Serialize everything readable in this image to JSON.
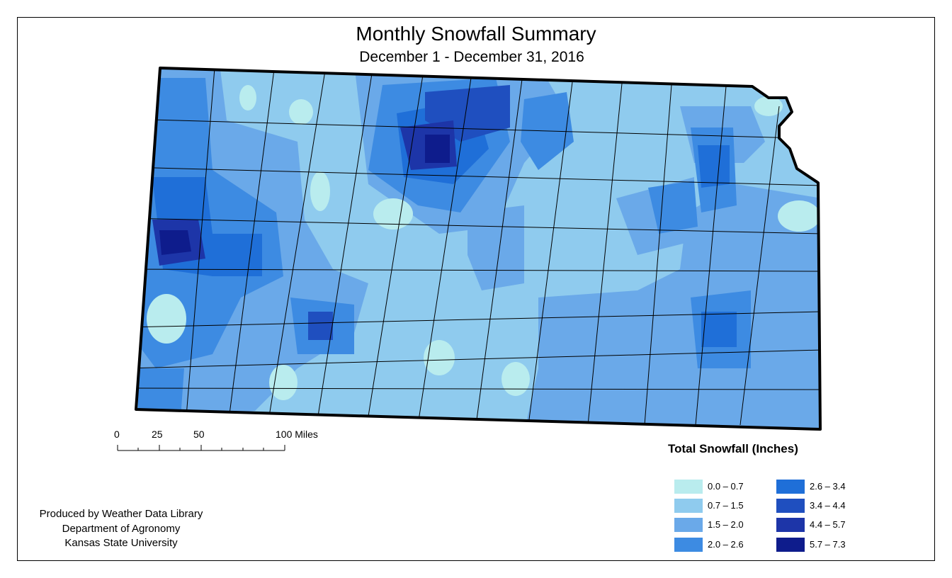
{
  "title": "Monthly Snowfall Summary",
  "subtitle": "December 1 - December 31, 2016",
  "credits": {
    "line1": "Produced by Weather Data Library",
    "line2": "Department of Agronomy",
    "line3": "Kansas State University"
  },
  "scale_bar": {
    "labels": [
      "0",
      "25",
      "50",
      "100 Miles"
    ]
  },
  "legend": {
    "title": "Total Snowfall (Inches)",
    "items": [
      {
        "label": "0.0 – 0.7",
        "color": "#b9ecee"
      },
      {
        "label": "0.7 – 1.5",
        "color": "#8fcbee"
      },
      {
        "label": "1.5 – 2.0",
        "color": "#6aa9e9"
      },
      {
        "label": "2.0 – 2.6",
        "color": "#3d8be2"
      },
      {
        "label": "2.6 – 3.4",
        "color": "#1f6fd8"
      },
      {
        "label": "3.4 – 4.4",
        "color": "#1f4fbf"
      },
      {
        "label": "4.4 – 5.7",
        "color": "#1d35a8"
      },
      {
        "label": "5.7 – 7.3",
        "color": "#0e1c8c"
      }
    ]
  }
}
